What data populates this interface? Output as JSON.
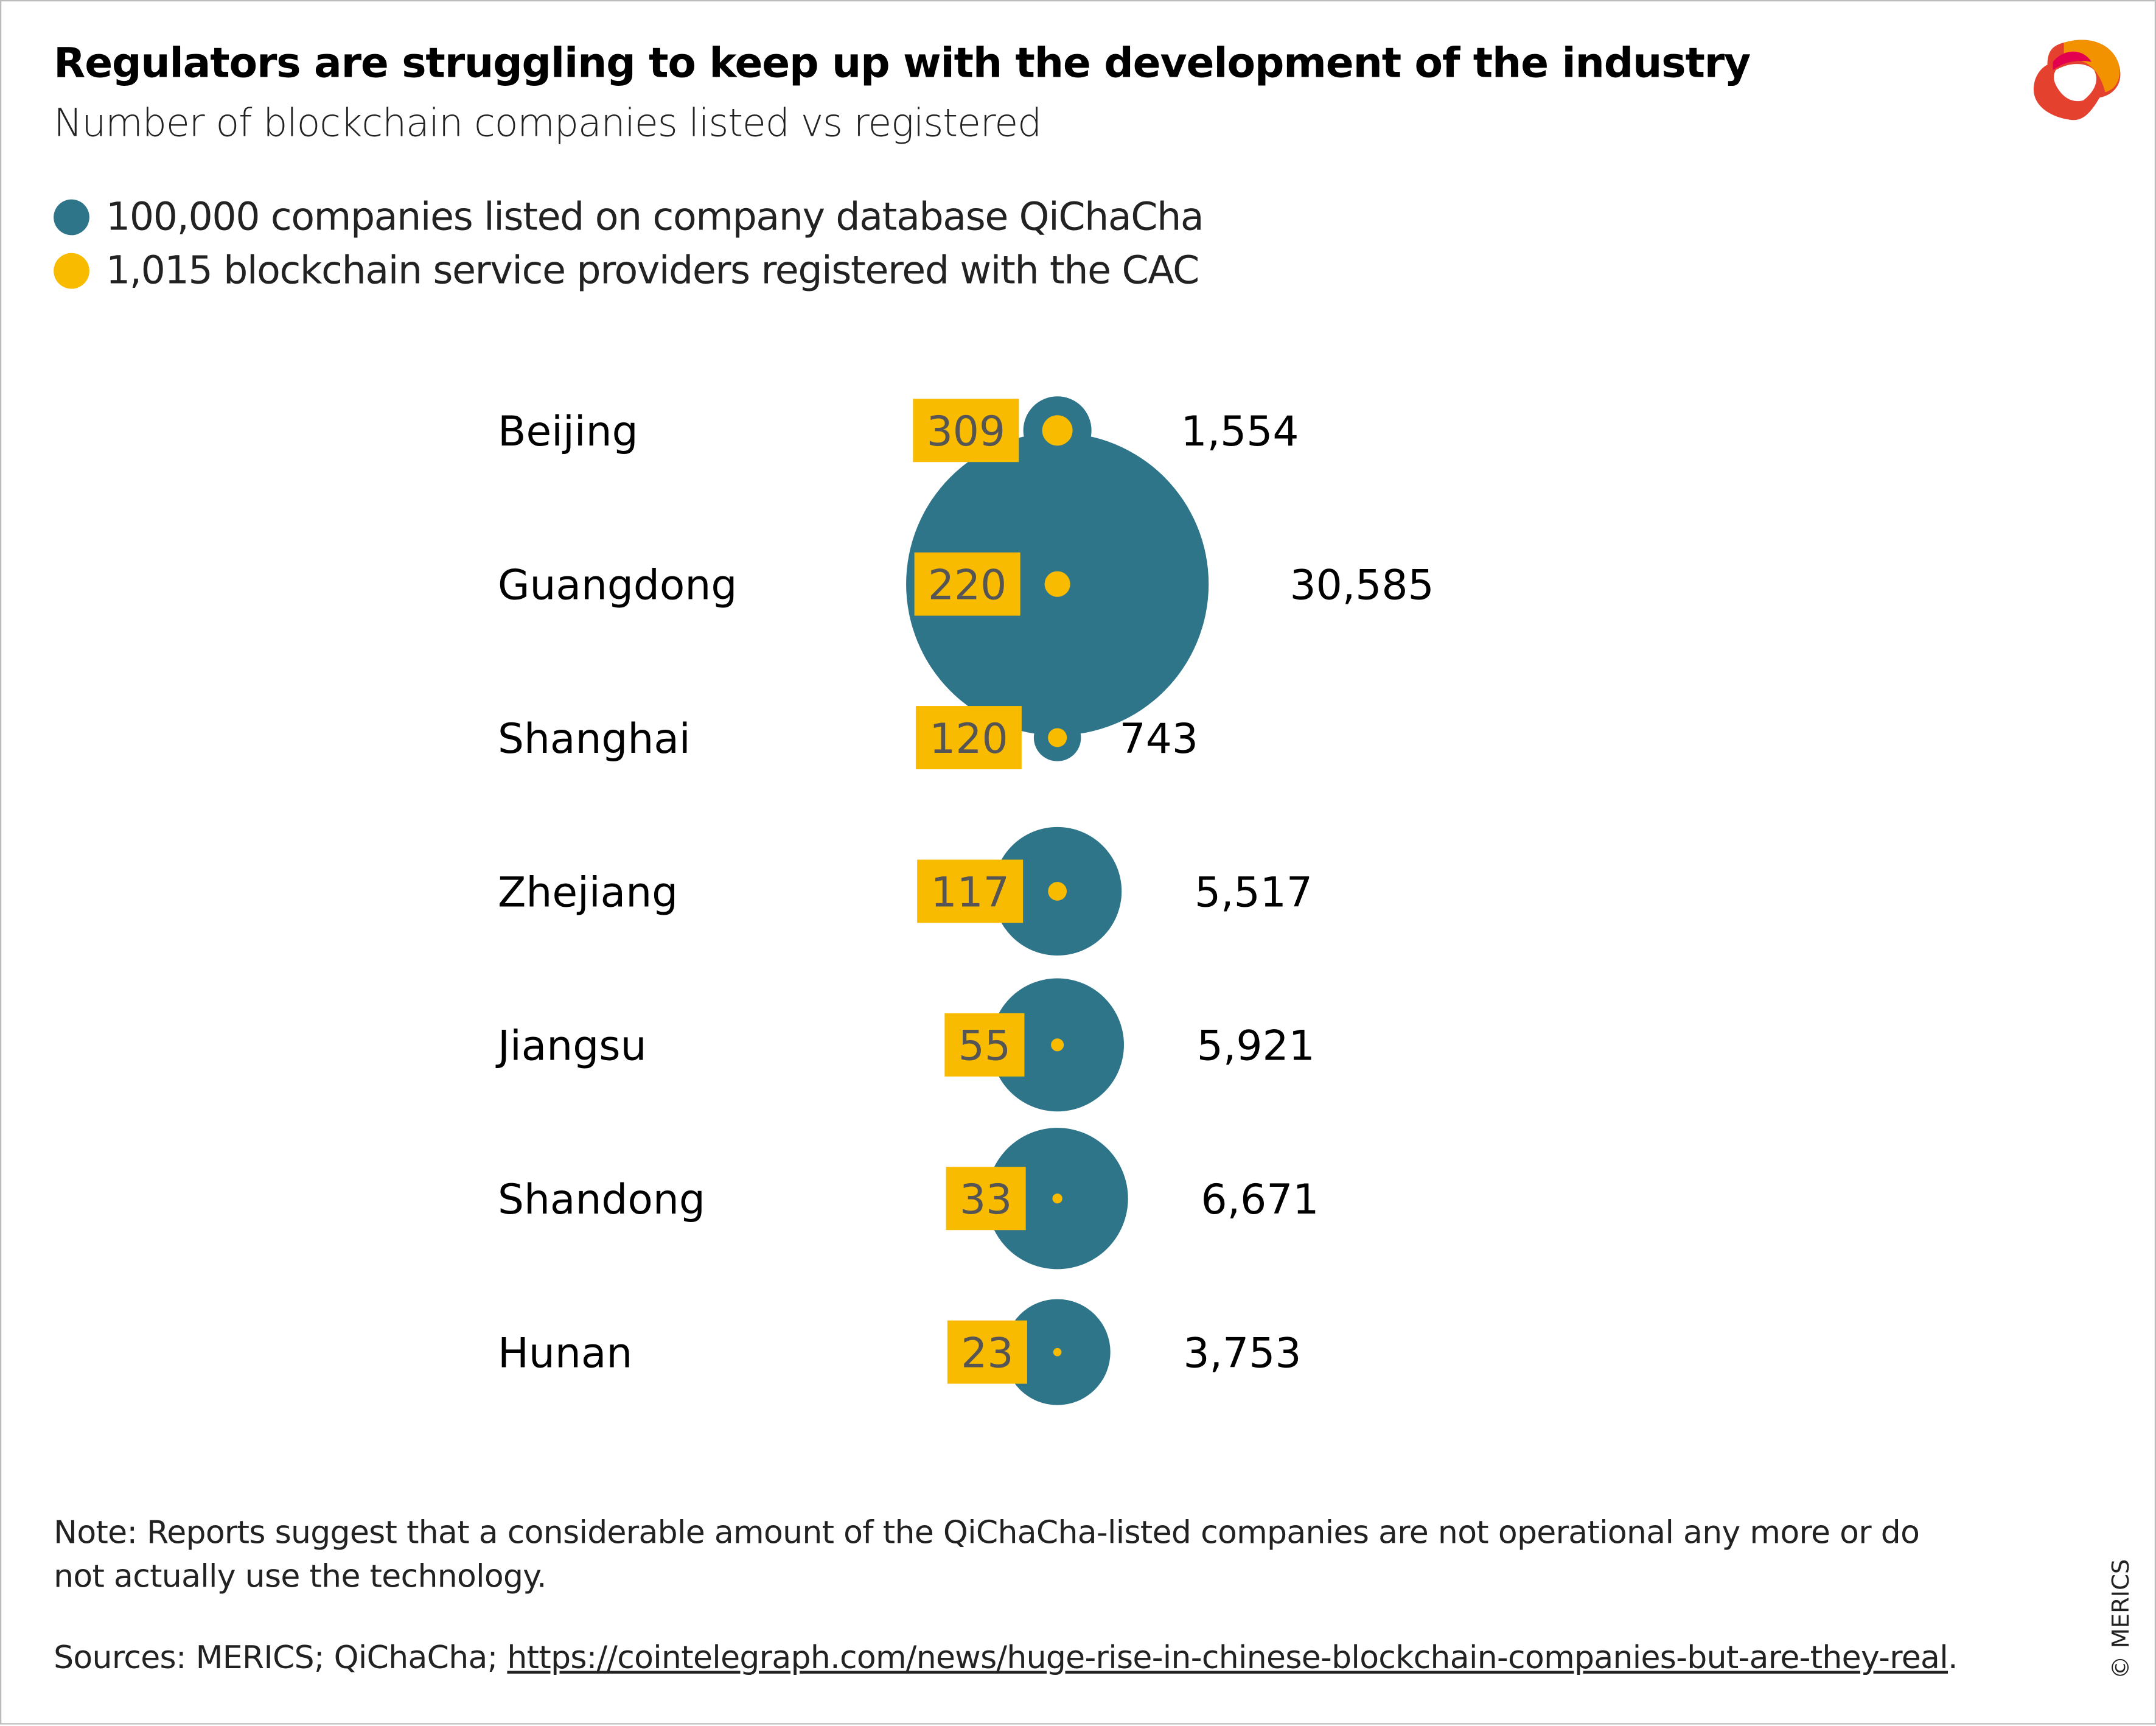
{
  "title": "Regulators are struggling to keep up with the development of the industry",
  "subtitle": "Number of blockchain companies listed vs registered",
  "legend": [
    {
      "label": "100,000 companies listed on company database QiChaCha",
      "color": "#2e758a"
    },
    {
      "label": "1,015 blockchain service providers registered with the CAC",
      "color": "#f9bb00"
    }
  ],
  "note": "Note: Reports suggest that a considerable amount of the QiChaCha-listed companies are not operational any more or do not actually use the technology.",
  "sources_prefix": "Sources: MERICS; QiChaCha; ",
  "sources_link": "https://cointelegraph.com/news/huge-rise-in-chinese-blockchain-companies-but-are-they-real",
  "sources_suffix": ".",
  "copyright": "© MERICS",
  "chart_data": {
    "type": "bubble",
    "title": "Regulators are struggling to keep up with the development of the industry",
    "categories": [
      "Beijing",
      "Guangdong",
      "Shanghai",
      "Zhejiang",
      "Jiangsu",
      "Shandong",
      "Hunan"
    ],
    "series": [
      {
        "name": "100,000 companies listed on company database QiChaCha",
        "color": "#2e758a",
        "values": [
          1554,
          30585,
          743,
          5517,
          5921,
          6671,
          3753
        ],
        "labels": [
          "1,554",
          "30,585",
          "743",
          "5,517",
          "5,921",
          "6,671",
          "3,753"
        ]
      },
      {
        "name": "1,015 blockchain service providers registered with the CAC",
        "color": "#f9bb00",
        "values": [
          309,
          220,
          120,
          117,
          55,
          33,
          23
        ],
        "labels": [
          "309",
          "220",
          "120",
          "117",
          "55",
          "33",
          "23"
        ]
      }
    ]
  }
}
